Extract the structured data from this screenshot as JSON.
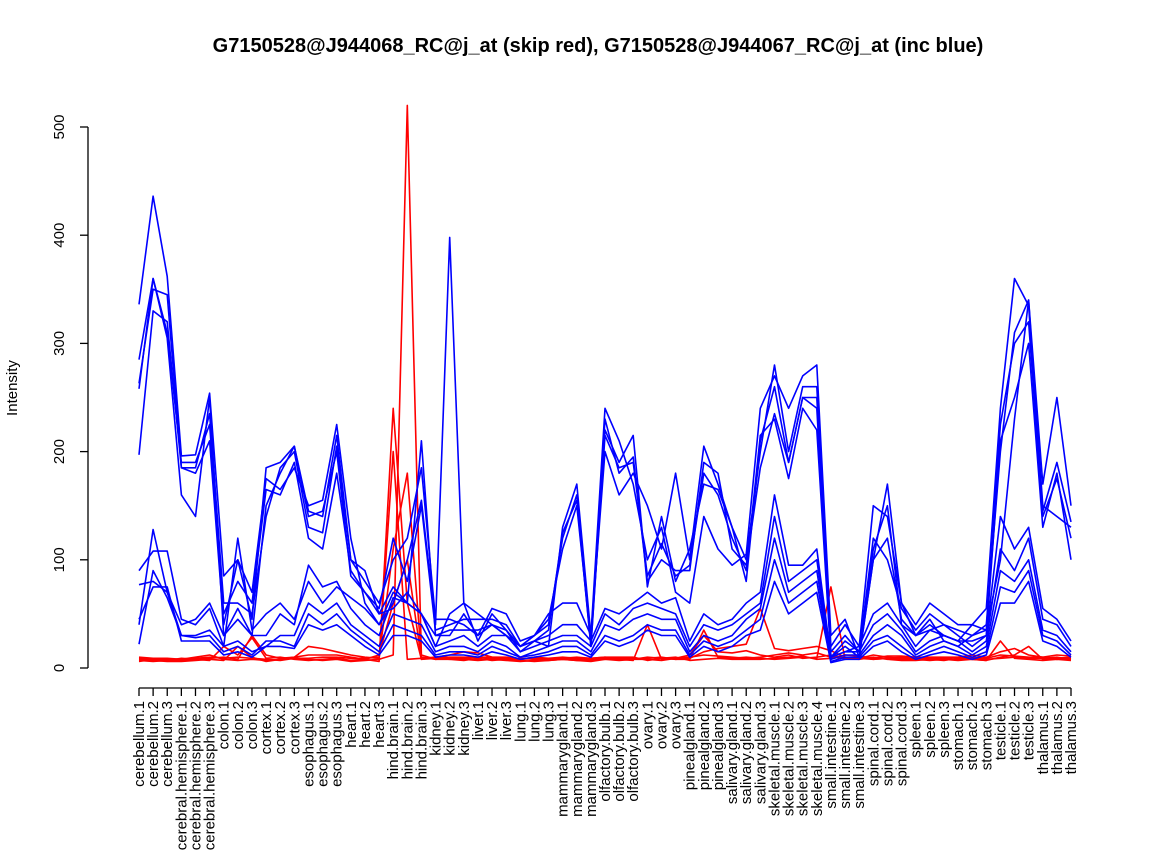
{
  "chart_data": {
    "type": "line",
    "title": "G7150528@J944068_RC@j_at (skip red), G7150528@J944067_RC@j_at (inc blue)",
    "ylabel": "Intensity",
    "xlabel": "",
    "ylim": [
      0,
      520
    ],
    "yticks": [
      0,
      100,
      200,
      300,
      400,
      500
    ],
    "grid": false,
    "legend": "none",
    "categories": [
      "cerebellum.1",
      "cerebellum.2",
      "cerebellum.3",
      "cerebral.hemisphere.1",
      "cerebral.hemisphere.2",
      "cerebral.hemisphere.3",
      "colon.1",
      "colon.2",
      "colon.3",
      "cortex.1",
      "cortex.2",
      "cortex.3",
      "esophagus.1",
      "esophagus.2",
      "esophagus.3",
      "heart.1",
      "heart.2",
      "heart.3",
      "hind.brain.1",
      "hind.brain.2",
      "hind.brain.3",
      "kidney.1",
      "kidney.2",
      "kidney.3",
      "liver.1",
      "liver.2",
      "liver.3",
      "lung.1",
      "lung.2",
      "lung.3",
      "mammarygland.1",
      "mammarygland.2",
      "mammarygland.3",
      "olfactory.bulb.1",
      "olfactory.bulb.2",
      "olfactory.bulb.3",
      "ovary.1",
      "ovary.2",
      "ovary.3",
      "pinealgland.1",
      "pinealgland.2",
      "pinealgland.3",
      "salivary.gland.1",
      "salivary.gland.2",
      "salivary.gland.3",
      "skeletal.muscle.1",
      "skeletal.muscle.2",
      "skeletal.muscle.3",
      "skeletal.muscle.4",
      "small.intestine.1",
      "small.intestine.2",
      "small.intestine.3",
      "spinal.cord.1",
      "spinal.cord.2",
      "spinal.cord.3",
      "spleen.1",
      "spleen.2",
      "spleen.3",
      "stomach.1",
      "stomach.2",
      "stomach.3",
      "testicle.1",
      "testicle.2",
      "testicle.3",
      "thalamus.1",
      "thalamus.2",
      "thalamus.3"
    ],
    "colors": {
      "skip": "#ff0000",
      "inc": "#0000ff"
    },
    "series": [
      {
        "group": "skip",
        "values": [
          8,
          7,
          6,
          6,
          7,
          8,
          7,
          20,
          10,
          6,
          8,
          9,
          8,
          7,
          8,
          6,
          7,
          8,
          12,
          520,
          12,
          8,
          9,
          8,
          7,
          8,
          7,
          6,
          7,
          7,
          8,
          7,
          6,
          8,
          9,
          8,
          10,
          9,
          8,
          8,
          35,
          10,
          9,
          10,
          9,
          8,
          9,
          10,
          9,
          75,
          8,
          9,
          8,
          9,
          8,
          8,
          7,
          8,
          7,
          8,
          7,
          25,
          9,
          8,
          7,
          8,
          7
        ]
      },
      {
        "group": "skip",
        "values": [
          7,
          6,
          7,
          7,
          8,
          7,
          20,
          12,
          28,
          9,
          10,
          8,
          7,
          8,
          9,
          7,
          8,
          6,
          240,
          60,
          8,
          9,
          8,
          7,
          9,
          7,
          8,
          7,
          6,
          7,
          8,
          7,
          7,
          9,
          8,
          7,
          40,
          8,
          9,
          12,
          30,
          15,
          14,
          16,
          12,
          10,
          12,
          9,
          10,
          12,
          9,
          8,
          10,
          8,
          7,
          7,
          8,
          7,
          9,
          8,
          7,
          10,
          12,
          20,
          8,
          9,
          10
        ]
      },
      {
        "group": "skip",
        "values": [
          6,
          8,
          7,
          9,
          8,
          9,
          10,
          8,
          30,
          12,
          9,
          10,
          20,
          18,
          15,
          12,
          10,
          9,
          200,
          8,
          9,
          10,
          12,
          15,
          14,
          10,
          9,
          8,
          9,
          8,
          9,
          10,
          9,
          10,
          8,
          9,
          9,
          10,
          8,
          9,
          15,
          18,
          20,
          22,
          55,
          18,
          16,
          18,
          20,
          16,
          10,
          9,
          12,
          10,
          9,
          8,
          9,
          9,
          10,
          12,
          10,
          15,
          18,
          12,
          10,
          8,
          9
        ]
      },
      {
        "group": "skip",
        "values": [
          9,
          8,
          8,
          8,
          9,
          10,
          9,
          10,
          9,
          8,
          7,
          9,
          9,
          10,
          10,
          9,
          9,
          10,
          110,
          180,
          10,
          8,
          8,
          9,
          8,
          9,
          9,
          9,
          8,
          8,
          9,
          8,
          8,
          8,
          7,
          8,
          8,
          7,
          9,
          10,
          12,
          11,
          10,
          9,
          10,
          12,
          14,
          12,
          14,
          10,
          9,
          10,
          8,
          9,
          10,
          9,
          9,
          8,
          8,
          9,
          8,
          9,
          10,
          9,
          9,
          10,
          8
        ]
      },
      {
        "group": "skip",
        "values": [
          10,
          9,
          9,
          8,
          10,
          12,
          8,
          7,
          8,
          7,
          8,
          10,
          12,
          12,
          12,
          10,
          8,
          12,
          60,
          100,
          8,
          10,
          10,
          10,
          10,
          10,
          10,
          8,
          10,
          9,
          10,
          9,
          9,
          10,
          10,
          10,
          7,
          9,
          10,
          7,
          8,
          9,
          8,
          8,
          8,
          9,
          10,
          11,
          8,
          9,
          12,
          11,
          9,
          11,
          11,
          10,
          10,
          10,
          10,
          10,
          9,
          12,
          11,
          10,
          10,
          12,
          11
        ]
      },
      {
        "group": "inc",
        "values": [
          336,
          436,
          362,
          196,
          197,
          254,
          85,
          100,
          70,
          175,
          165,
          185,
          150,
          155,
          225,
          120,
          60,
          40,
          60,
          100,
          155,
          40,
          398,
          60,
          25,
          50,
          35,
          20,
          30,
          50,
          60,
          60,
          30,
          240,
          210,
          170,
          100,
          130,
          70,
          60,
          140,
          110,
          95,
          105,
          240,
          270,
          240,
          270,
          280,
          30,
          45,
          10,
          100,
          170,
          60,
          40,
          60,
          50,
          40,
          40,
          35,
          100,
          230,
          340,
          170,
          250,
          150
        ]
      },
      {
        "group": "inc",
        "values": [
          285,
          360,
          305,
          160,
          140,
          250,
          30,
          45,
          30,
          150,
          180,
          205,
          140,
          145,
          200,
          85,
          70,
          50,
          55,
          70,
          50,
          20,
          50,
          60,
          50,
          40,
          30,
          20,
          25,
          20,
          130,
          170,
          30,
          200,
          160,
          180,
          150,
          110,
          180,
          100,
          205,
          170,
          130,
          100,
          200,
          280,
          200,
          260,
          260,
          20,
          40,
          20,
          150,
          140,
          60,
          30,
          40,
          30,
          25,
          40,
          55,
          240,
          360,
          335,
          150,
          140,
          130
        ]
      },
      {
        "group": "inc",
        "values": [
          263,
          350,
          345,
          185,
          180,
          210,
          40,
          100,
          45,
          185,
          190,
          205,
          145,
          140,
          215,
          100,
          80,
          60,
          100,
          120,
          185,
          45,
          45,
          40,
          30,
          55,
          50,
          25,
          30,
          45,
          110,
          150,
          25,
          230,
          180,
          195,
          80,
          100,
          90,
          90,
          190,
          180,
          110,
          95,
          185,
          235,
          190,
          250,
          250,
          15,
          30,
          15,
          120,
          100,
          55,
          35,
          50,
          40,
          35,
          30,
          40,
          200,
          310,
          340,
          145,
          190,
          135
        ]
      },
      {
        "group": "inc",
        "values": [
          258,
          360,
          310,
          190,
          190,
          225,
          50,
          80,
          60,
          165,
          160,
          190,
          120,
          110,
          180,
          90,
          70,
          55,
          120,
          80,
          150,
          35,
          40,
          45,
          45,
          45,
          40,
          20,
          30,
          40,
          120,
          160,
          20,
          220,
          190,
          215,
          75,
          140,
          80,
          110,
          170,
          165,
          130,
          80,
          210,
          260,
          190,
          250,
          240,
          10,
          25,
          15,
          110,
          150,
          40,
          30,
          45,
          25,
          20,
          30,
          35,
          225,
          300,
          320,
          140,
          175,
          120
        ]
      },
      {
        "group": "inc",
        "values": [
          197,
          330,
          320,
          185,
          185,
          235,
          60,
          60,
          50,
          140,
          185,
          200,
          130,
          125,
          205,
          100,
          90,
          50,
          75,
          60,
          210,
          30,
          35,
          35,
          35,
          40,
          35,
          15,
          25,
          35,
          125,
          155,
          20,
          215,
          185,
          190,
          85,
          115,
          85,
          95,
          180,
          160,
          120,
          90,
          215,
          230,
          175,
          240,
          220,
          10,
          20,
          10,
          100,
          120,
          45,
          30,
          35,
          30,
          25,
          25,
          30,
          210,
          250,
          300,
          130,
          180,
          100
        ]
      },
      {
        "group": "inc",
        "values": [
          90,
          108,
          108,
          45,
          40,
          55,
          20,
          120,
          35,
          50,
          60,
          45,
          80,
          60,
          75,
          65,
          55,
          40,
          70,
          60,
          50,
          30,
          30,
          50,
          30,
          40,
          30,
          20,
          25,
          30,
          40,
          40,
          25,
          55,
          50,
          60,
          70,
          60,
          65,
          25,
          50,
          40,
          45,
          60,
          70,
          160,
          95,
          95,
          110,
          10,
          15,
          20,
          50,
          60,
          40,
          20,
          35,
          40,
          30,
          20,
          30,
          140,
          110,
          130,
          55,
          45,
          25
        ]
      },
      {
        "group": "inc",
        "values": [
          40,
          128,
          70,
          40,
          45,
          60,
          30,
          55,
          30,
          30,
          50,
          40,
          95,
          75,
          80,
          55,
          40,
          30,
          65,
          60,
          50,
          20,
          25,
          30,
          20,
          30,
          30,
          15,
          20,
          25,
          30,
          30,
          20,
          50,
          40,
          55,
          60,
          55,
          50,
          20,
          40,
          35,
          40,
          50,
          60,
          140,
          80,
          90,
          100,
          10,
          15,
          15,
          40,
          50,
          35,
          15,
          25,
          30,
          25,
          15,
          25,
          110,
          90,
          120,
          45,
          40,
          20
        ]
      },
      {
        "group": "inc",
        "values": [
          22,
          90,
          65,
          30,
          30,
          35,
          20,
          25,
          15,
          20,
          30,
          30,
          60,
          50,
          60,
          40,
          30,
          20,
          50,
          45,
          40,
          15,
          20,
          20,
          15,
          25,
          20,
          10,
          15,
          20,
          25,
          25,
          15,
          40,
          35,
          45,
          50,
          45,
          45,
          15,
          30,
          25,
          30,
          45,
          55,
          120,
          70,
          80,
          90,
          8,
          12,
          12,
          30,
          40,
          30,
          12,
          20,
          25,
          20,
          12,
          20,
          90,
          80,
          100,
          35,
          30,
          15
        ]
      },
      {
        "group": "inc",
        "values": [
          77,
          80,
          70,
          30,
          28,
          30,
          15,
          20,
          12,
          25,
          25,
          20,
          50,
          40,
          50,
          35,
          25,
          15,
          40,
          35,
          30,
          12,
          15,
          15,
          12,
          20,
          15,
          10,
          12,
          15,
          20,
          20,
          12,
          30,
          25,
          30,
          40,
          35,
          35,
          12,
          25,
          20,
          25,
          35,
          45,
          100,
          60,
          70,
          80,
          6,
          10,
          10,
          25,
          30,
          20,
          10,
          15,
          20,
          15,
          10,
          15,
          75,
          70,
          90,
          30,
          25,
          12
        ]
      },
      {
        "group": "inc",
        "values": [
          45,
          75,
          75,
          25,
          25,
          25,
          12,
          15,
          10,
          20,
          20,
          18,
          40,
          35,
          40,
          30,
          20,
          12,
          30,
          30,
          25,
          10,
          12,
          12,
          10,
          15,
          12,
          8,
          10,
          12,
          15,
          15,
          10,
          25,
          20,
          25,
          35,
          30,
          30,
          10,
          20,
          15,
          20,
          30,
          35,
          80,
          50,
          60,
          70,
          5,
          8,
          8,
          20,
          25,
          15,
          8,
          12,
          15,
          12,
          8,
          12,
          60,
          60,
          80,
          25,
          20,
          10
        ]
      }
    ]
  }
}
